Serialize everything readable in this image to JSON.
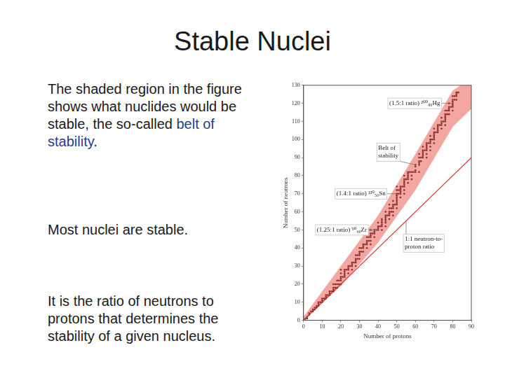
{
  "title": "Stable Nuclei",
  "paragraphs": [
    [
      {
        "text": "The shaded region in the figure shows what nuclides would be stable, the so-called "
      },
      {
        "text": "belt of stability",
        "highlight": true
      },
      {
        "text": "."
      }
    ],
    [
      {
        "text": "Most nuclei are stable."
      }
    ],
    [
      {
        "text": "It is the ratio of neutrons to protons that determines the stability of a given nucleus."
      }
    ]
  ],
  "chart_data": {
    "type": "scatter",
    "x_label": "Number of protons",
    "y_label": "Number of neutrons",
    "xlim": [
      0,
      90
    ],
    "xticks": [
      0,
      10,
      20,
      30,
      40,
      50,
      60,
      70,
      80,
      90
    ],
    "ylim": [
      0,
      130
    ],
    "yticks": [
      0,
      10,
      20,
      30,
      40,
      50,
      60,
      70,
      80,
      90,
      100,
      110,
      120,
      130
    ],
    "grid": false,
    "color": "#8a2b2b",
    "points": [
      [
        1,
        0
      ],
      [
        1,
        1
      ],
      [
        2,
        1
      ],
      [
        2,
        2
      ],
      [
        3,
        3
      ],
      [
        3,
        4
      ],
      [
        4,
        5
      ],
      [
        5,
        5
      ],
      [
        5,
        6
      ],
      [
        6,
        6
      ],
      [
        6,
        7
      ],
      [
        7,
        7
      ],
      [
        7,
        8
      ],
      [
        8,
        8
      ],
      [
        8,
        9
      ],
      [
        8,
        10
      ],
      [
        9,
        10
      ],
      [
        10,
        10
      ],
      [
        10,
        11
      ],
      [
        10,
        12
      ],
      [
        11,
        12
      ],
      [
        12,
        12
      ],
      [
        12,
        13
      ],
      [
        12,
        14
      ],
      [
        13,
        14
      ],
      [
        14,
        14
      ],
      [
        14,
        15
      ],
      [
        14,
        16
      ],
      [
        15,
        16
      ],
      [
        16,
        16
      ],
      [
        16,
        17
      ],
      [
        16,
        18
      ],
      [
        16,
        20
      ],
      [
        17,
        18
      ],
      [
        17,
        20
      ],
      [
        18,
        18
      ],
      [
        18,
        20
      ],
      [
        18,
        22
      ],
      [
        19,
        20
      ],
      [
        19,
        22
      ],
      [
        20,
        20
      ],
      [
        20,
        22
      ],
      [
        20,
        23
      ],
      [
        20,
        24
      ],
      [
        20,
        26
      ],
      [
        20,
        28
      ],
      [
        21,
        24
      ],
      [
        22,
        24
      ],
      [
        22,
        25
      ],
      [
        22,
        26
      ],
      [
        22,
        27
      ],
      [
        22,
        28
      ],
      [
        23,
        28
      ],
      [
        24,
        26
      ],
      [
        24,
        28
      ],
      [
        24,
        29
      ],
      [
        24,
        30
      ],
      [
        25,
        30
      ],
      [
        26,
        28
      ],
      [
        26,
        30
      ],
      [
        26,
        31
      ],
      [
        26,
        32
      ],
      [
        27,
        32
      ],
      [
        28,
        30
      ],
      [
        28,
        32
      ],
      [
        28,
        33
      ],
      [
        28,
        34
      ],
      [
        28,
        36
      ],
      [
        29,
        34
      ],
      [
        29,
        36
      ],
      [
        30,
        34
      ],
      [
        30,
        36
      ],
      [
        30,
        37
      ],
      [
        30,
        38
      ],
      [
        30,
        40
      ],
      [
        31,
        38
      ],
      [
        31,
        40
      ],
      [
        32,
        38
      ],
      [
        32,
        40
      ],
      [
        32,
        41
      ],
      [
        32,
        42
      ],
      [
        33,
        42
      ],
      [
        34,
        40
      ],
      [
        34,
        42
      ],
      [
        34,
        43
      ],
      [
        34,
        44
      ],
      [
        34,
        46
      ],
      [
        35,
        44
      ],
      [
        35,
        46
      ],
      [
        36,
        42
      ],
      [
        36,
        44
      ],
      [
        36,
        46
      ],
      [
        36,
        47
      ],
      [
        36,
        48
      ],
      [
        36,
        50
      ],
      [
        37,
        48
      ],
      [
        38,
        46
      ],
      [
        38,
        48
      ],
      [
        38,
        49
      ],
      [
        38,
        50
      ],
      [
        39,
        50
      ],
      [
        40,
        50
      ],
      [
        40,
        51
      ],
      [
        40,
        52
      ],
      [
        40,
        54
      ],
      [
        41,
        52
      ],
      [
        42,
        50
      ],
      [
        42,
        52
      ],
      [
        42,
        53
      ],
      [
        42,
        54
      ],
      [
        42,
        55
      ],
      [
        42,
        56
      ],
      [
        44,
        52
      ],
      [
        44,
        54
      ],
      [
        44,
        55
      ],
      [
        44,
        56
      ],
      [
        44,
        57
      ],
      [
        44,
        58
      ],
      [
        44,
        60
      ],
      [
        45,
        58
      ],
      [
        46,
        56
      ],
      [
        46,
        58
      ],
      [
        46,
        59
      ],
      [
        46,
        60
      ],
      [
        46,
        62
      ],
      [
        46,
        64
      ],
      [
        47,
        60
      ],
      [
        47,
        62
      ],
      [
        48,
        58
      ],
      [
        48,
        60
      ],
      [
        48,
        62
      ],
      [
        48,
        63
      ],
      [
        48,
        64
      ],
      [
        48,
        66
      ],
      [
        49,
        64
      ],
      [
        50,
        62
      ],
      [
        50,
        64
      ],
      [
        50,
        65
      ],
      [
        50,
        66
      ],
      [
        50,
        67
      ],
      [
        50,
        68
      ],
      [
        50,
        69
      ],
      [
        50,
        70
      ],
      [
        50,
        72
      ],
      [
        50,
        74
      ],
      [
        51,
        70
      ],
      [
        51,
        72
      ],
      [
        52,
        68
      ],
      [
        52,
        70
      ],
      [
        52,
        71
      ],
      [
        52,
        72
      ],
      [
        52,
        73
      ],
      [
        52,
        74
      ],
      [
        53,
        74
      ],
      [
        54,
        70
      ],
      [
        54,
        72
      ],
      [
        54,
        74
      ],
      [
        54,
        75
      ],
      [
        54,
        76
      ],
      [
        54,
        77
      ],
      [
        54,
        78
      ],
      [
        54,
        80
      ],
      [
        55,
        78
      ],
      [
        56,
        76
      ],
      [
        56,
        78
      ],
      [
        56,
        79
      ],
      [
        56,
        80
      ],
      [
        56,
        81
      ],
      [
        56,
        82
      ],
      [
        57,
        82
      ],
      [
        58,
        78
      ],
      [
        58,
        80
      ],
      [
        58,
        82
      ],
      [
        59,
        82
      ],
      [
        60,
        82
      ],
      [
        60,
        83
      ],
      [
        60,
        85
      ],
      [
        60,
        86
      ],
      [
        62,
        82
      ],
      [
        62,
        86
      ],
      [
        62,
        87
      ],
      [
        62,
        88
      ],
      [
        62,
        90
      ],
      [
        62,
        92
      ],
      [
        63,
        88
      ],
      [
        63,
        90
      ],
      [
        64,
        90
      ],
      [
        64,
        91
      ],
      [
        64,
        92
      ],
      [
        64,
        93
      ],
      [
        64,
        94
      ],
      [
        64,
        96
      ],
      [
        65,
        94
      ],
      [
        66,
        90
      ],
      [
        66,
        92
      ],
      [
        66,
        94
      ],
      [
        66,
        95
      ],
      [
        66,
        96
      ],
      [
        66,
        97
      ],
      [
        66,
        98
      ],
      [
        67,
        98
      ],
      [
        68,
        94
      ],
      [
        68,
        96
      ],
      [
        68,
        98
      ],
      [
        68,
        99
      ],
      [
        68,
        100
      ],
      [
        68,
        102
      ],
      [
        69,
        100
      ],
      [
        70,
        98
      ],
      [
        70,
        100
      ],
      [
        70,
        101
      ],
      [
        70,
        102
      ],
      [
        70,
        103
      ],
      [
        70,
        104
      ],
      [
        70,
        106
      ],
      [
        71,
        104
      ],
      [
        72,
        104
      ],
      [
        72,
        105
      ],
      [
        72,
        106
      ],
      [
        72,
        107
      ],
      [
        72,
        108
      ],
      [
        73,
        108
      ],
      [
        74,
        106
      ],
      [
        74,
        108
      ],
      [
        74,
        109
      ],
      [
        74,
        110
      ],
      [
        74,
        112
      ],
      [
        75,
        110
      ],
      [
        76,
        108
      ],
      [
        76,
        110
      ],
      [
        76,
        111
      ],
      [
        76,
        112
      ],
      [
        76,
        113
      ],
      [
        76,
        114
      ],
      [
        76,
        116
      ],
      [
        77,
        114
      ],
      [
        77,
        116
      ],
      [
        78,
        114
      ],
      [
        78,
        116
      ],
      [
        78,
        117
      ],
      [
        78,
        118
      ],
      [
        78,
        120
      ],
      [
        79,
        118
      ],
      [
        80,
        116
      ],
      [
        80,
        118
      ],
      [
        80,
        119
      ],
      [
        80,
        120
      ],
      [
        80,
        121
      ],
      [
        80,
        122
      ],
      [
        80,
        124
      ],
      [
        81,
        122
      ],
      [
        81,
        124
      ],
      [
        82,
        122
      ],
      [
        82,
        124
      ],
      [
        82,
        125
      ],
      [
        82,
        126
      ],
      [
        83,
        126
      ]
    ],
    "band": {
      "x": [
        0,
        20,
        40,
        60,
        80,
        90
      ],
      "lower": [
        0,
        19,
        43,
        72,
        107,
        117
      ],
      "upper": [
        2,
        30,
        58,
        92,
        127,
        134
      ],
      "color": "#f4a6a0"
    },
    "reference_line": {
      "x": [
        0,
        90
      ],
      "values": [
        0,
        90
      ],
      "color": "#d9302c"
    },
    "annotations": [
      {
        "text": [
          "(1.5:1 ratio) ²⁰⁰₈₀Hg"
        ],
        "x": 80,
        "y": 120
      },
      {
        "text": [
          "(1.4:1 ratio) ¹²⁰₅₀Sn"
        ],
        "x": 50,
        "y": 70
      },
      {
        "text": [
          "(1.25:1 ratio) ⁹⁰₄₀Zr"
        ],
        "x": 40,
        "y": 50
      },
      {
        "text": [
          "Belt of",
          "stability"
        ],
        "x": 60,
        "y": 86
      },
      {
        "text": [
          "1:1 neutron-to-",
          "proton ratio"
        ],
        "x": 55,
        "y": 55
      }
    ]
  }
}
